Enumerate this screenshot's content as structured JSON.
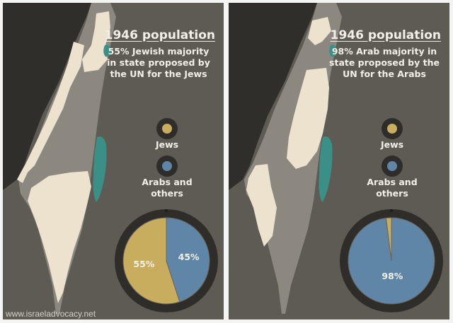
{
  "colors": {
    "jews": "#c8ad5f",
    "arabs": "#5f86a6",
    "land": "#ece2cd",
    "map_gray": "#8c8880",
    "sea": "#2f2e2b",
    "water": "#3a8f86",
    "background": "#5e5b54"
  },
  "panels": [
    {
      "title": "1946 population",
      "subtitle": "55% Jewish majority in state proposed by the UN for the Jews",
      "legend": [
        {
          "label": "Jews",
          "color": "#c8ad5f"
        },
        {
          "label": "Arabs and others",
          "color": "#5f86a6"
        }
      ],
      "pie": {
        "slices": [
          {
            "name": "Jews",
            "value": 55,
            "label": "55%",
            "color": "#c8ad5f"
          },
          {
            "name": "Arabs",
            "value": 45,
            "label": "45%",
            "color": "#5f86a6"
          }
        ]
      }
    },
    {
      "title": "1946 population",
      "subtitle": "98% Arab majority in state proposed by the UN for the Arabs",
      "legend": [
        {
          "label": "Jews",
          "color": "#c8ad5f"
        },
        {
          "label": "Arabs and others",
          "color": "#5f86a6"
        }
      ],
      "pie": {
        "slices": [
          {
            "name": "Jews",
            "value": 2,
            "label": "",
            "color": "#c8ad5f"
          },
          {
            "name": "Arabs",
            "value": 98,
            "label": "98%",
            "color": "#5f86a6"
          }
        ]
      }
    }
  ],
  "watermark": "www.israeladvocacy.net"
}
